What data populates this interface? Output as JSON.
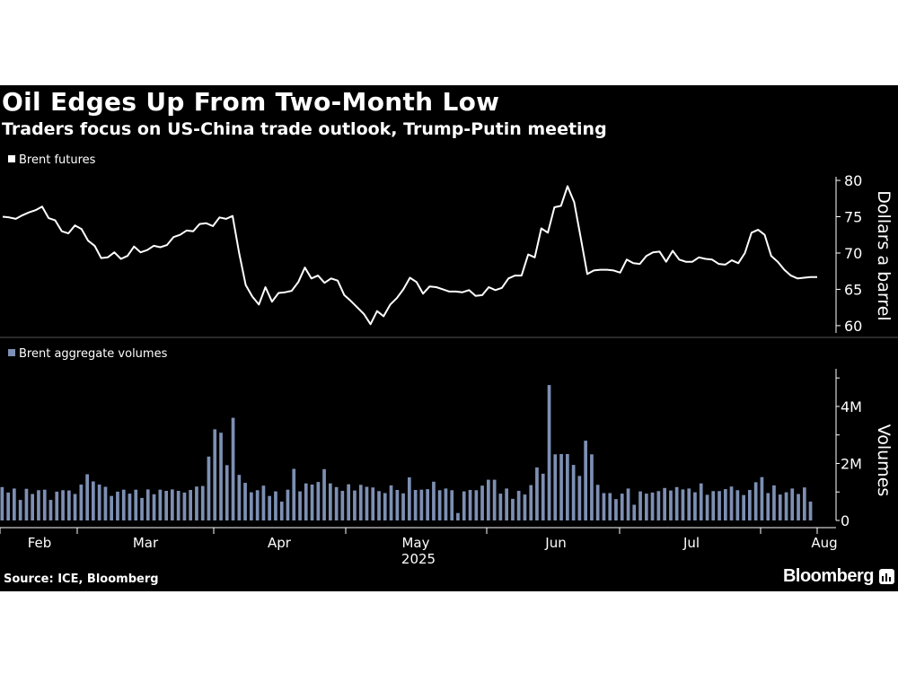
{
  "header": {
    "title": "Oil Edges Up From Two-Month Low",
    "subtitle": "Traders focus on US-China trade outlook, Trump-Putin meeting"
  },
  "footer": {
    "source": "Source: ICE, Bloomberg",
    "brand": "Bloomberg"
  },
  "colors": {
    "background": "#000000",
    "line": "#ffffff",
    "bars": "#7d8fb3",
    "text": "#ffffff"
  },
  "chart_data": [
    {
      "type": "line",
      "legend": "Brent futures",
      "series": [
        {
          "name": "Brent futures",
          "values": [
            75.0,
            74.9,
            74.7,
            75.2,
            75.6,
            75.9,
            76.4,
            74.8,
            74.5,
            73.0,
            72.7,
            73.8,
            73.3,
            71.7,
            71.0,
            69.3,
            69.4,
            70.1,
            69.2,
            69.6,
            70.9,
            70.1,
            70.4,
            71.0,
            70.8,
            71.1,
            72.2,
            72.5,
            73.1,
            73.0,
            74.0,
            74.1,
            73.7,
            74.9,
            74.7,
            75.1,
            70.0,
            65.6,
            64.0,
            62.9,
            65.3,
            63.3,
            64.5,
            64.6,
            64.8,
            66.0,
            68.0,
            66.5,
            66.9,
            65.9,
            66.5,
            66.2,
            64.2,
            63.4,
            62.5,
            61.6,
            60.2,
            62.0,
            61.3,
            62.9,
            63.8,
            65.0,
            66.6,
            66.0,
            64.4,
            65.4,
            65.3,
            65.0,
            64.7,
            64.7,
            64.6,
            64.9,
            64.1,
            64.2,
            65.3,
            64.9,
            65.2,
            66.5,
            66.9,
            66.9,
            69.8,
            69.4,
            73.4,
            72.8,
            76.3,
            76.5,
            79.2,
            77.0,
            72.1,
            67.1,
            67.6,
            67.7,
            67.7,
            67.6,
            67.3,
            69.1,
            68.6,
            68.5,
            69.6,
            70.1,
            70.2,
            68.8,
            70.3,
            69.1,
            68.8,
            68.8,
            69.4,
            69.2,
            69.1,
            68.5,
            68.4,
            69.0,
            68.6,
            70.0,
            72.8,
            73.2,
            72.5,
            69.6,
            68.8,
            67.7,
            66.9,
            66.5,
            66.6,
            66.7,
            66.7
          ]
        }
      ],
      "ylabel": "Dollars a barrel",
      "ylim": [
        59,
        80.5
      ],
      "yticks": [
        "80",
        "75",
        "70",
        "65",
        "60"
      ],
      "ytick_values": [
        80,
        75,
        70,
        65,
        60
      ]
    },
    {
      "type": "bar",
      "legend": "Brent aggregate volumes",
      "series": [
        {
          "name": "Brent aggregate volumes",
          "values": [
            1.17,
            0.98,
            1.12,
            0.72,
            1.11,
            0.93,
            1.06,
            1.08,
            0.72,
            1.01,
            1.06,
            1.05,
            0.93,
            1.26,
            1.62,
            1.37,
            1.26,
            1.18,
            0.86,
            1.01,
            1.08,
            0.94,
            1.08,
            0.79,
            1.09,
            0.92,
            1.08,
            1.04,
            1.09,
            1.04,
            0.98,
            1.07,
            1.19,
            1.21,
            2.24,
            3.2,
            3.08,
            1.94,
            3.6,
            1.6,
            1.32,
            0.99,
            1.06,
            1.22,
            0.86,
            1.02,
            0.66,
            1.08,
            1.81,
            1.02,
            1.3,
            1.26,
            1.35,
            1.8,
            1.3,
            1.17,
            1.04,
            1.27,
            1.05,
            1.25,
            1.18,
            1.16,
            1.03,
            0.96,
            1.23,
            1.07,
            0.95,
            1.51,
            1.07,
            1.08,
            1.1,
            1.36,
            1.06,
            1.12,
            1.06,
            0.26,
            1.02,
            1.07,
            1.06,
            1.22,
            1.43,
            1.43,
            0.94,
            1.12,
            0.76,
            1.04,
            0.91,
            1.24,
            1.86,
            1.64,
            4.75,
            2.32,
            2.33,
            2.33,
            1.95,
            1.56,
            2.8,
            2.32,
            1.25,
            0.96,
            0.96,
            0.75,
            0.94,
            1.12,
            0.55,
            1.02,
            0.94,
            0.98,
            1.03,
            1.14,
            1.05,
            1.17,
            1.09,
            1.12,
            0.99,
            1.3,
            0.9,
            1.03,
            1.03,
            1.1,
            1.19,
            1.06,
            0.89,
            1.07,
            1.34,
            1.52,
            0.96,
            1.23,
            0.91,
            0.99,
            1.12,
            0.93,
            1.16,
            0.66
          ]
        }
      ],
      "ylabel": "Volumes",
      "ylim": [
        0,
        5.1
      ],
      "yticks": [
        "0",
        "2M",
        "4M"
      ],
      "ytick_values": [
        0,
        2,
        4
      ],
      "unit": "M"
    }
  ],
  "xaxis": {
    "months": [
      "Feb",
      "Mar",
      "Apr",
      "May",
      "Jun",
      "Jul",
      "Aug"
    ],
    "year": "2025"
  }
}
